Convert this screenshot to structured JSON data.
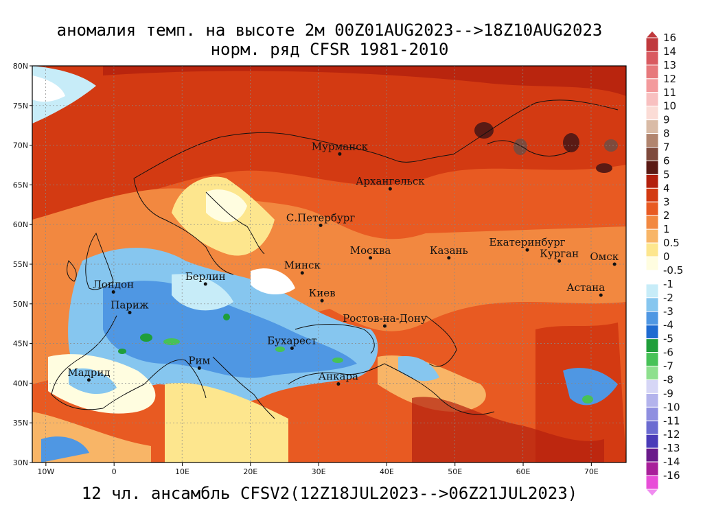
{
  "title_line1": "аномалия темп. на высоте 2м 00Z01AUG2023-->18Z10AUG2023",
  "title_line2": "норм. ряд CFSR 1981-2010",
  "footer": "12 чл. ансамбль CFSV2(12Z18JUL2023-->06Z21JUL2023)",
  "lon_labels": [
    "10W",
    "0",
    "10E",
    "20E",
    "30E",
    "40E",
    "50E",
    "60E",
    "70E"
  ],
  "lat_labels": [
    "80N",
    "75N",
    "70N",
    "65N",
    "60N",
    "55N",
    "50N",
    "45N",
    "40N",
    "35N",
    "30N"
  ],
  "colorbar": [
    {
      "label": "16",
      "color": "#c0393d"
    },
    {
      "label": "14",
      "color": "#d95a60"
    },
    {
      "label": "13",
      "color": "#e7797c"
    },
    {
      "label": "12",
      "color": "#f39a9c"
    },
    {
      "label": "11",
      "color": "#f8c0c0"
    },
    {
      "label": "10",
      "color": "#fbdcd6"
    },
    {
      "label": "9",
      "color": "#d9bba6"
    },
    {
      "label": "8",
      "color": "#b1856f"
    },
    {
      "label": "7",
      "color": "#7e4a3c"
    },
    {
      "label": "6",
      "color": "#5a1a14"
    },
    {
      "label": "5",
      "color": "#b3200e"
    },
    {
      "label": "4",
      "color": "#d33a12"
    },
    {
      "label": "3",
      "color": "#e85a22"
    },
    {
      "label": "2",
      "color": "#f28840"
    },
    {
      "label": "1",
      "color": "#f8b567"
    },
    {
      "label": "0.5",
      "color": "#fde68e"
    },
    {
      "label": "0",
      "color": "#fffde0"
    },
    {
      "label": "-0.5",
      "color": "#ffffff"
    },
    {
      "label": "-1",
      "color": "#c7ecf8"
    },
    {
      "label": "-2",
      "color": "#86c6ef"
    },
    {
      "label": "-3",
      "color": "#4f97e3"
    },
    {
      "label": "-4",
      "color": "#1f6bd1"
    },
    {
      "label": "-5",
      "color": "#1f9e3a"
    },
    {
      "label": "-6",
      "color": "#47c257"
    },
    {
      "label": "-7",
      "color": "#8ee08e"
    },
    {
      "label": "-8",
      "color": "#d6d6f6"
    },
    {
      "label": "-9",
      "color": "#b3b3ec"
    },
    {
      "label": "-10",
      "color": "#8f8fe0"
    },
    {
      "label": "-11",
      "color": "#6b6bd1"
    },
    {
      "label": "-12",
      "color": "#4a3bb8"
    },
    {
      "label": "-13",
      "color": "#6a1a8a"
    },
    {
      "label": "-14",
      "color": "#a81f9a"
    },
    {
      "label": "-16",
      "color": "#e84ed8"
    }
  ],
  "colorbar_end_top": "#c0393d",
  "colorbar_end_bottom": "#f08cf0",
  "cities": [
    {
      "name": "Мурманск",
      "lon": 33.1,
      "lat": 68.9
    },
    {
      "name": "Архангельск",
      "lon": 40.5,
      "lat": 64.5
    },
    {
      "name": "С.Петербург",
      "lon": 30.3,
      "lat": 59.9
    },
    {
      "name": "Москва",
      "lon": 37.6,
      "lat": 55.8
    },
    {
      "name": "Казань",
      "lon": 49.1,
      "lat": 55.8
    },
    {
      "name": "Екатеринбург",
      "lon": 60.6,
      "lat": 56.8
    },
    {
      "name": "Курган",
      "lon": 65.3,
      "lat": 55.4
    },
    {
      "name": "Омск",
      "lon": 73.4,
      "lat": 55.0
    },
    {
      "name": "Астана",
      "lon": 71.4,
      "lat": 51.1
    },
    {
      "name": "Минск",
      "lon": 27.6,
      "lat": 53.9
    },
    {
      "name": "Киев",
      "lon": 30.5,
      "lat": 50.4
    },
    {
      "name": "Ростов-на-Дону",
      "lon": 39.7,
      "lat": 47.2
    },
    {
      "name": "Берлин",
      "lon": 13.4,
      "lat": 52.5
    },
    {
      "name": "Лондон",
      "lon": -0.1,
      "lat": 51.5
    },
    {
      "name": "Париж",
      "lon": 2.3,
      "lat": 48.9
    },
    {
      "name": "Бухарест",
      "lon": 26.1,
      "lat": 44.4
    },
    {
      "name": "Рим",
      "lon": 12.5,
      "lat": 41.9
    },
    {
      "name": "Мадрид",
      "lon": -3.7,
      "lat": 40.4
    },
    {
      "name": "Анкара",
      "lon": 32.9,
      "lat": 39.9
    }
  ]
}
